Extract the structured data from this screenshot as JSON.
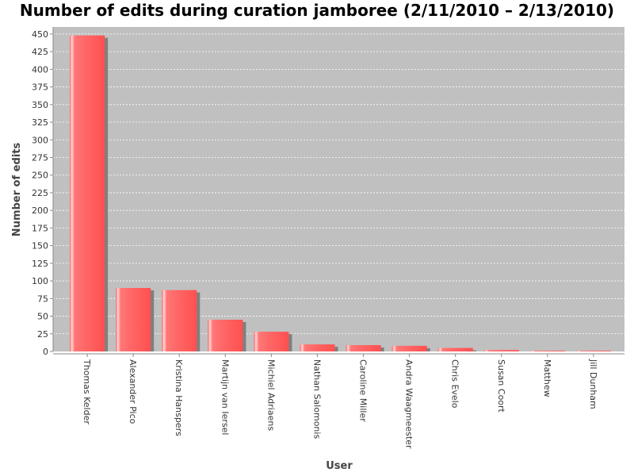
{
  "chart_data": {
    "type": "bar",
    "title": "Number of edits during curation jamboree (2/11/2010 – 2/13/2010)",
    "xlabel": "User",
    "ylabel": "Number of edits",
    "categories": [
      "Thomas Kelder",
      "Alexander Pico",
      "Kristina Hanspers",
      "Martijn van Iersel",
      "Michiel Adriaens",
      "Nathan Salomonis",
      "Caroline Miller",
      "Andra Waagmeester",
      "Chris Evelo",
      "Susan Coort",
      "Matthew",
      "Jill Dunham"
    ],
    "values": [
      448,
      90,
      87,
      45,
      28,
      10,
      9,
      8,
      5,
      2,
      1,
      1
    ],
    "ylim": [
      0,
      460
    ],
    "yticks": [
      0,
      25,
      50,
      75,
      100,
      125,
      150,
      175,
      200,
      225,
      250,
      275,
      300,
      325,
      350,
      375,
      400,
      425,
      450
    ],
    "grid": true,
    "colors": {
      "bar": "#ff6666",
      "bar_highlight": "#ffd0d0",
      "bar_shadow": "#7f7f7f",
      "plot_background": "#c0c0c0",
      "gridline": "#ffffff"
    }
  }
}
